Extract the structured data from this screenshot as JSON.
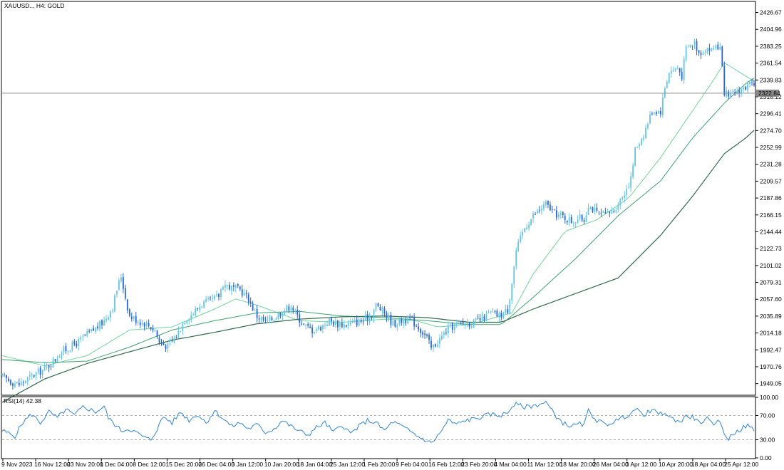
{
  "window": {
    "symbol_title": "XAUUSD.., H4:  GOLD",
    "rsi_title": "RSI(14) 42.38"
  },
  "colors": {
    "background": "#ffffff",
    "frame": "#000000",
    "candle": "#2563eb",
    "candle_light": "#5ec8e8",
    "ma_fast": "#6fd89a",
    "ma_mid": "#3aa570",
    "ma_slow": "#2e6b48",
    "price_line": "#8a8a8a",
    "rsi_line": "#2f86e0",
    "rsi_level": "#b0b0b0"
  },
  "chart_data": [
    {
      "type": "candlestick",
      "title": "XAUUSD.., H4:  GOLD",
      "ylim": [
        1935,
        2440
      ],
      "y_ticks": [
        "2426.67",
        "2404.96",
        "2383.25",
        "2361.54",
        "2339.83",
        "2318.12",
        "2296.41",
        "2274.70",
        "2252.99",
        "2231.28",
        "2209.57",
        "2187.86",
        "2166.15",
        "2144.44",
        "2122.73",
        "2101.02",
        "2079.31",
        "2057.60",
        "2035.89",
        "2014.18",
        "1992.47",
        "1970.76",
        "1949.05"
      ],
      "current_price": "2322.84",
      "x_ticks": [
        "9 Nov 2023",
        "16 Nov 12:00",
        "23 Nov 20:00",
        "1 Dec 04:00",
        "8 Dec 12:00",
        "15 Dec 20:00",
        "26 Dec 04:00",
        "3 Jan 12:00",
        "10 Jan 20:00",
        "18 Jan 04:00",
        "25 Jan 12:00",
        "1 Feb 20:00",
        "9 Feb 04:00",
        "16 Feb 12:00",
        "23 Feb 20:00",
        "4 Mar 04:00",
        "11 Mar 12:00",
        "18 Mar 20:00",
        "26 Mar 04:00",
        "3 Apr 12:00",
        "10 Apr 20:00",
        "18 Apr 04:00",
        "25 Apr 12:00"
      ],
      "close_path": [
        [
          0,
          1958
        ],
        [
          4,
          1952
        ],
        [
          8,
          1948
        ],
        [
          12,
          1955
        ],
        [
          16,
          1962
        ],
        [
          20,
          1968
        ],
        [
          24,
          1978
        ],
        [
          28,
          1990
        ],
        [
          32,
          1996
        ],
        [
          36,
          2003
        ],
        [
          40,
          2012
        ],
        [
          44,
          2020
        ],
        [
          48,
          2030
        ],
        [
          52,
          2048
        ],
        [
          54,
          2070
        ],
        [
          56,
          2088
        ],
        [
          58,
          2060
        ],
        [
          60,
          2036
        ],
        [
          64,
          2030
        ],
        [
          68,
          2026
        ],
        [
          72,
          2018
        ],
        [
          74,
          2002
        ],
        [
          78,
          1997
        ],
        [
          82,
          2010
        ],
        [
          86,
          2032
        ],
        [
          90,
          2040
        ],
        [
          94,
          2052
        ],
        [
          98,
          2055
        ],
        [
          102,
          2062
        ],
        [
          104,
          2078
        ],
        [
          108,
          2072
        ],
        [
          112,
          2070
        ],
        [
          116,
          2058
        ],
        [
          120,
          2036
        ],
        [
          124,
          2028
        ],
        [
          128,
          2034
        ],
        [
          132,
          2042
        ],
        [
          136,
          2050
        ],
        [
          138,
          2040
        ],
        [
          142,
          2024
        ],
        [
          146,
          2018
        ],
        [
          150,
          2022
        ],
        [
          154,
          2030
        ],
        [
          158,
          2026
        ],
        [
          162,
          2025
        ],
        [
          166,
          2028
        ],
        [
          170,
          2030
        ],
        [
          174,
          2038
        ],
        [
          176,
          2050
        ],
        [
          180,
          2040
        ],
        [
          184,
          2026
        ],
        [
          188,
          2030
        ],
        [
          192,
          2032
        ],
        [
          196,
          2022
        ],
        [
          200,
          2008
        ],
        [
          202,
          1994
        ],
        [
          206,
          2006
        ],
        [
          210,
          2020
        ],
        [
          214,
          2025
        ],
        [
          218,
          2027
        ],
        [
          222,
          2027
        ],
        [
          226,
          2032
        ],
        [
          230,
          2040
        ],
        [
          234,
          2036
        ],
        [
          238,
          2044
        ],
        [
          240,
          2080
        ],
        [
          242,
          2120
        ],
        [
          246,
          2150
        ],
        [
          250,
          2165
        ],
        [
          254,
          2175
        ],
        [
          256,
          2180
        ],
        [
          260,
          2168
        ],
        [
          264,
          2164
        ],
        [
          268,
          2158
        ],
        [
          272,
          2162
        ],
        [
          274,
          2160
        ],
        [
          276,
          2180
        ],
        [
          280,
          2168
        ],
        [
          284,
          2166
        ],
        [
          288,
          2172
        ],
        [
          292,
          2190
        ],
        [
          296,
          2212
        ],
        [
          298,
          2250
        ],
        [
          302,
          2270
        ],
        [
          306,
          2300
        ],
        [
          310,
          2300
        ],
        [
          312,
          2330
        ],
        [
          314,
          2350
        ],
        [
          318,
          2356
        ],
        [
          320,
          2345
        ],
        [
          322,
          2380
        ],
        [
          326,
          2388
        ],
        [
          328,
          2375
        ],
        [
          332,
          2380
        ],
        [
          334,
          2378
        ],
        [
          336,
          2385
        ],
        [
          338,
          2380
        ],
        [
          340,
          2325
        ],
        [
          342,
          2316
        ],
        [
          344,
          2322
        ],
        [
          348,
          2328
        ],
        [
          350,
          2330
        ],
        [
          352,
          2335
        ],
        [
          354,
          2328
        ]
      ],
      "series": [
        {
          "name": "",
          "values": [
            [
              0,
              1985
            ],
            [
              20,
              1972
            ],
            [
              40,
              1985
            ],
            [
              60,
              2018
            ],
            [
              80,
              2022
            ],
            [
              100,
              2045
            ],
            [
              110,
              2058
            ],
            [
              120,
              2050
            ],
            [
              140,
              2030
            ],
            [
              160,
              2028
            ],
            [
              180,
              2032
            ],
            [
              195,
              2030
            ],
            [
              205,
              2022
            ],
            [
              220,
              2025
            ],
            [
              240,
              2040
            ],
            [
              250,
              2090
            ],
            [
              265,
              2145
            ],
            [
              280,
              2160
            ],
            [
              295,
              2188
            ],
            [
              310,
              2240
            ],
            [
              325,
              2300
            ],
            [
              335,
              2340
            ],
            [
              340,
              2362
            ],
            [
              350,
              2345
            ],
            [
              354,
              2338
            ]
          ]
        },
        {
          "name": "",
          "values": [
            [
              0,
              1980
            ],
            [
              20,
              1976
            ],
            [
              40,
              1978
            ],
            [
              60,
              1996
            ],
            [
              80,
              2018
            ],
            [
              100,
              2030
            ],
            [
              120,
              2040
            ],
            [
              140,
              2042
            ],
            [
              160,
              2036
            ],
            [
              180,
              2034
            ],
            [
              200,
              2030
            ],
            [
              220,
              2025
            ],
            [
              235,
              2025
            ],
            [
              250,
              2060
            ],
            [
              270,
              2110
            ],
            [
              290,
              2165
            ],
            [
              310,
              2210
            ],
            [
              325,
              2265
            ],
            [
              340,
              2310
            ],
            [
              350,
              2335
            ],
            [
              354,
              2342
            ]
          ]
        },
        {
          "name": "",
          "values": [
            [
              0,
              1925
            ],
            [
              20,
              1955
            ],
            [
              40,
              1975
            ],
            [
              60,
              1990
            ],
            [
              80,
              2005
            ],
            [
              100,
              2015
            ],
            [
              120,
              2026
            ],
            [
              140,
              2032
            ],
            [
              160,
              2035
            ],
            [
              180,
              2036
            ],
            [
              200,
              2034
            ],
            [
              220,
              2028
            ],
            [
              235,
              2028
            ],
            [
              250,
              2045
            ],
            [
              270,
              2065
            ],
            [
              290,
              2085
            ],
            [
              310,
              2140
            ],
            [
              325,
              2190
            ],
            [
              340,
              2245
            ],
            [
              350,
              2265
            ],
            [
              354,
              2275
            ]
          ]
        }
      ]
    },
    {
      "type": "line",
      "title": "RSI(14) 42.38",
      "ylim": [
        0,
        100
      ],
      "levels": [
        30,
        70
      ],
      "y_ticks": [
        "100.00",
        "70.00",
        "30.00",
        "0.00"
      ],
      "series": [
        {
          "name": "",
          "values": [
            [
              0,
              45
            ],
            [
              6,
              36
            ],
            [
              10,
              60
            ],
            [
              14,
              72
            ],
            [
              18,
              58
            ],
            [
              22,
              76
            ],
            [
              26,
              66
            ],
            [
              30,
              80
            ],
            [
              34,
              70
            ],
            [
              38,
              84
            ],
            [
              40,
              82
            ],
            [
              44,
              76
            ],
            [
              48,
              85
            ],
            [
              50,
              66
            ],
            [
              54,
              52
            ],
            [
              56,
              45
            ],
            [
              60,
              48
            ],
            [
              64,
              40
            ],
            [
              68,
              32
            ],
            [
              70,
              30
            ],
            [
              72,
              42
            ],
            [
              76,
              68
            ],
            [
              80,
              58
            ],
            [
              84,
              76
            ],
            [
              88,
              62
            ],
            [
              92,
              72
            ],
            [
              96,
              58
            ],
            [
              100,
              78
            ],
            [
              104,
              65
            ],
            [
              108,
              52
            ],
            [
              112,
              58
            ],
            [
              116,
              48
            ],
            [
              120,
              55
            ],
            [
              124,
              42
            ],
            [
              128,
              48
            ],
            [
              132,
              62
            ],
            [
              136,
              52
            ],
            [
              140,
              44
            ],
            [
              144,
              38
            ],
            [
              148,
              50
            ],
            [
              152,
              58
            ],
            [
              156,
              42
            ],
            [
              160,
              55
            ],
            [
              164,
              40
            ],
            [
              168,
              52
            ],
            [
              172,
              62
            ],
            [
              176,
              58
            ],
            [
              180,
              45
            ],
            [
              184,
              60
            ],
            [
              188,
              52
            ],
            [
              192,
              44
            ],
            [
              196,
              35
            ],
            [
              200,
              28
            ],
            [
              202,
              24
            ],
            [
              206,
              40
            ],
            [
              210,
              62
            ],
            [
              214,
              55
            ],
            [
              218,
              62
            ],
            [
              222,
              64
            ],
            [
              226,
              68
            ],
            [
              230,
              72
            ],
            [
              234,
              70
            ],
            [
              238,
              74
            ],
            [
              240,
              86
            ],
            [
              242,
              88
            ],
            [
              246,
              84
            ],
            [
              250,
              86
            ],
            [
              254,
              90
            ],
            [
              256,
              92
            ],
            [
              260,
              72
            ],
            [
              264,
              58
            ],
            [
              268,
              52
            ],
            [
              272,
              56
            ],
            [
              274,
              54
            ],
            [
              276,
              78
            ],
            [
              280,
              62
            ],
            [
              284,
              55
            ],
            [
              288,
              60
            ],
            [
              292,
              66
            ],
            [
              296,
              74
            ],
            [
              298,
              80
            ],
            [
              302,
              72
            ],
            [
              306,
              78
            ],
            [
              310,
              72
            ],
            [
              312,
              76
            ],
            [
              314,
              66
            ],
            [
              318,
              62
            ],
            [
              320,
              60
            ],
            [
              322,
              70
            ],
            [
              326,
              66
            ],
            [
              328,
              58
            ],
            [
              332,
              64
            ],
            [
              334,
              56
            ],
            [
              336,
              60
            ],
            [
              338,
              58
            ],
            [
              340,
              42
            ],
            [
              342,
              30
            ],
            [
              344,
              40
            ],
            [
              348,
              48
            ],
            [
              350,
              52
            ],
            [
              352,
              54
            ],
            [
              354,
              42
            ]
          ]
        }
      ]
    }
  ]
}
